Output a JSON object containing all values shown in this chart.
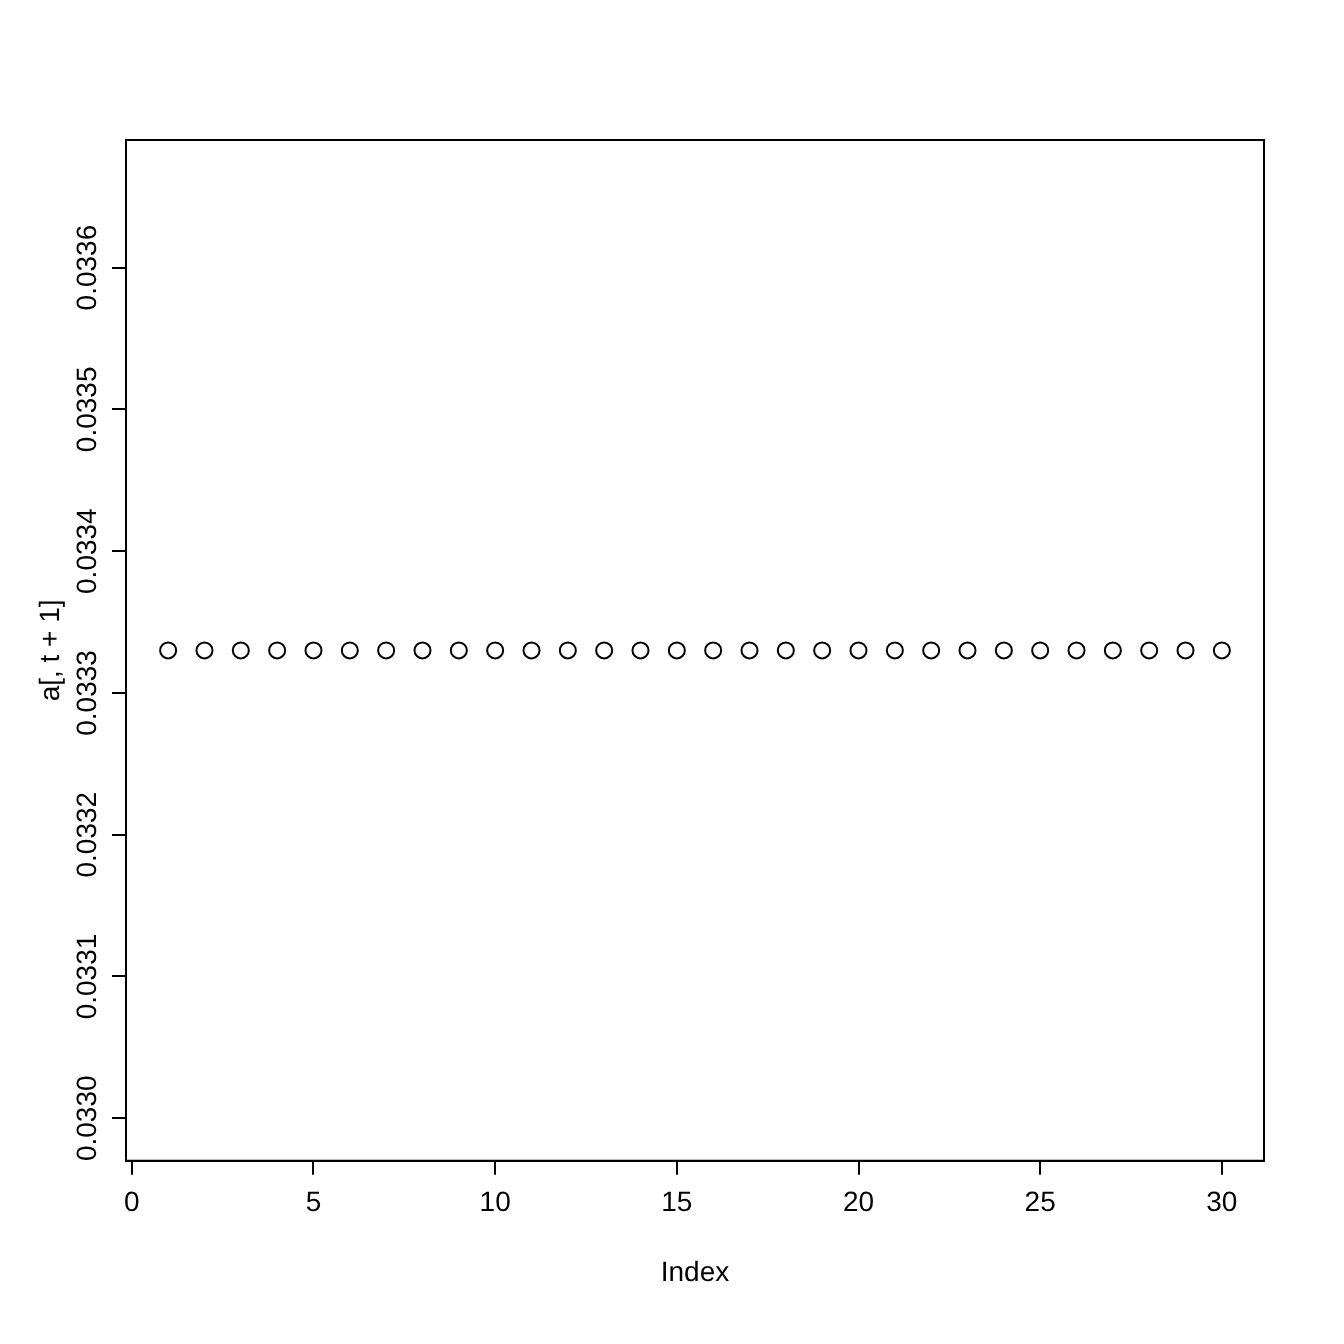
{
  "chart_data": {
    "type": "scatter",
    "xlabel": "Index",
    "ylabel": "a[, t + 1]",
    "x": [
      1,
      2,
      3,
      4,
      5,
      6,
      7,
      8,
      9,
      10,
      11,
      12,
      13,
      14,
      15,
      16,
      17,
      18,
      19,
      20,
      21,
      22,
      23,
      24,
      25,
      26,
      27,
      28,
      29,
      30
    ],
    "values": [
      0.03333,
      0.03333,
      0.03333,
      0.03333,
      0.03333,
      0.03333,
      0.03333,
      0.03333,
      0.03333,
      0.03333,
      0.03333,
      0.03333,
      0.03333,
      0.03333,
      0.03333,
      0.03333,
      0.03333,
      0.03333,
      0.03333,
      0.03333,
      0.03333,
      0.03333,
      0.03333,
      0.03333,
      0.03333,
      0.03333,
      0.03333,
      0.03333,
      0.03333,
      0.03333
    ],
    "color": "#000000",
    "marker": "circle",
    "xlim": [
      -0.16,
      31.16
    ],
    "xticks": [
      0,
      5,
      10,
      15,
      20,
      25,
      30
    ],
    "ylim": [
      0.03297,
      0.03369
    ],
    "yticks": [
      {
        "value": 0.033,
        "label": "0.0330"
      },
      {
        "value": 0.0331,
        "label": "0.0331"
      },
      {
        "value": 0.0332,
        "label": "0.0332"
      },
      {
        "value": 0.0333,
        "label": "0.0333"
      },
      {
        "value": 0.0334,
        "label": "0.0334"
      },
      {
        "value": 0.0335,
        "label": "0.0335"
      },
      {
        "value": 0.0336,
        "label": "0.0336"
      }
    ],
    "grid": false,
    "legend": false
  }
}
